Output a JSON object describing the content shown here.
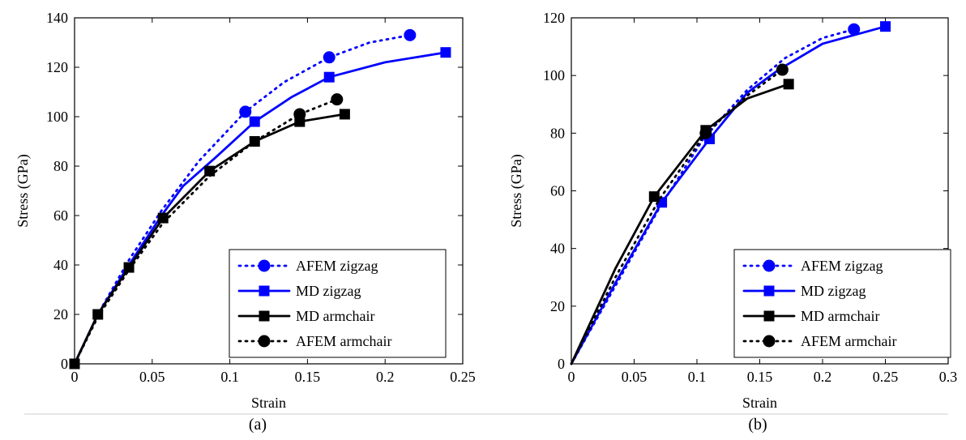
{
  "chart_data": [
    {
      "type": "line",
      "caption": "(a)",
      "xlabel": "Strain",
      "ylabel": "Stress (GPa)",
      "xlim": [
        0,
        0.25
      ],
      "ylim": [
        0,
        140
      ],
      "xticks": [
        "0",
        "0.05",
        "0.1",
        "0.15",
        "0.2",
        "0.25"
      ],
      "yticks": [
        "0",
        "20",
        "40",
        "60",
        "80",
        "100",
        "120",
        "140"
      ],
      "xtick_values": [
        0,
        0.05,
        0.1,
        0.15,
        0.2,
        0.25
      ],
      "ytick_values": [
        0,
        20,
        40,
        60,
        80,
        100,
        120,
        140
      ],
      "legend_position": "bottom-right",
      "series": [
        {
          "name": "AFEM zigzag",
          "color": "#0000ff",
          "dash": "dotted",
          "marker": "circle",
          "x": [
            0,
            0.015,
            0.035,
            0.056,
            0.08,
            0.11,
            0.135,
            0.164,
            0.19,
            0.216
          ],
          "y": [
            0,
            20,
            42,
            62,
            82,
            102,
            114,
            124,
            130,
            133
          ],
          "marker_idx": [
            5,
            7,
            9
          ]
        },
        {
          "name": "MD zigzag",
          "color": "#0000ff",
          "dash": "solid",
          "marker": "square",
          "x": [
            0,
            0.015,
            0.035,
            0.056,
            0.07,
            0.09,
            0.116,
            0.14,
            0.164,
            0.2,
            0.239
          ],
          "y": [
            0,
            20,
            40,
            60,
            72,
            83,
            98,
            108,
            116,
            122,
            126
          ],
          "marker_idx": [
            6,
            8,
            10
          ]
        },
        {
          "name": "MD armchair",
          "color": "#000000",
          "dash": "solid",
          "marker": "square",
          "x": [
            0,
            0.015,
            0.035,
            0.057,
            0.087,
            0.116,
            0.145,
            0.174
          ],
          "y": [
            0,
            20,
            39,
            59,
            78,
            90,
            98,
            101
          ],
          "marker_idx": [
            0,
            1,
            2,
            3,
            4,
            5,
            6,
            7
          ]
        },
        {
          "name": "AFEM armchair",
          "color": "#000000",
          "dash": "dotted",
          "marker": "circle",
          "x": [
            0,
            0.015,
            0.035,
            0.057,
            0.087,
            0.116,
            0.145,
            0.169
          ],
          "y": [
            0,
            19,
            38,
            57,
            76,
            90,
            101,
            107
          ],
          "marker_idx": [
            6,
            7
          ]
        }
      ]
    },
    {
      "type": "line",
      "caption": "(b)",
      "xlabel": "Strain",
      "ylabel": "Stress (GPa)",
      "xlim": [
        0,
        0.3
      ],
      "ylim": [
        0,
        120
      ],
      "xticks": [
        "0",
        "0.05",
        "0.1",
        "0.15",
        "0.2",
        "0.25",
        "0.3"
      ],
      "yticks": [
        "0",
        "20",
        "40",
        "60",
        "80",
        "100",
        "120"
      ],
      "xtick_values": [
        0,
        0.05,
        0.1,
        0.15,
        0.2,
        0.25,
        0.3
      ],
      "ytick_values": [
        0,
        20,
        40,
        60,
        80,
        100,
        120
      ],
      "legend_position": "bottom-right",
      "series": [
        {
          "name": "AFEM zigzag",
          "color": "#0000ff",
          "dash": "dotted",
          "marker": "circle",
          "x": [
            0,
            0.035,
            0.07,
            0.105,
            0.14,
            0.17,
            0.2,
            0.225
          ],
          "y": [
            0,
            27,
            54,
            78,
            95,
            106,
            113,
            116
          ],
          "marker_idx": [
            7
          ]
        },
        {
          "name": "MD zigzag",
          "color": "#0000ff",
          "dash": "solid",
          "marker": "square",
          "x": [
            0,
            0.035,
            0.072,
            0.11,
            0.14,
            0.165,
            0.2,
            0.25
          ],
          "y": [
            0,
            28,
            56,
            78,
            94,
            102,
            111,
            117
          ],
          "marker_idx": [
            2,
            3,
            7
          ]
        },
        {
          "name": "MD armchair",
          "color": "#000000",
          "dash": "solid",
          "marker": "square",
          "x": [
            0,
            0.035,
            0.066,
            0.107,
            0.14,
            0.173
          ],
          "y": [
            0,
            33,
            58,
            81,
            92,
            97
          ],
          "marker_idx": [
            2,
            3,
            5
          ]
        },
        {
          "name": "AFEM armchair",
          "color": "#000000",
          "dash": "dotted",
          "marker": "circle",
          "x": [
            0,
            0.035,
            0.07,
            0.107,
            0.14,
            0.168
          ],
          "y": [
            0,
            30,
            57,
            80,
            93,
            102
          ],
          "marker_idx": [
            3,
            5
          ]
        }
      ]
    }
  ]
}
